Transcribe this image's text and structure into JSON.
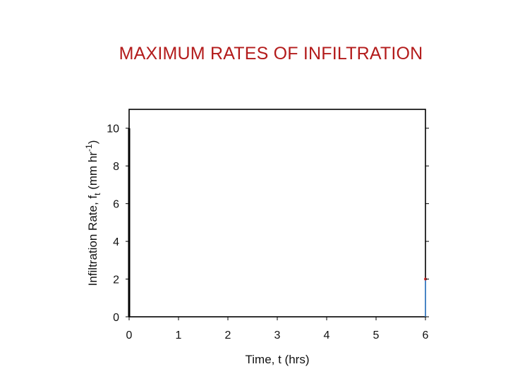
{
  "slide": {
    "title": "MAXIMUM RATES OF INFILTRATION"
  },
  "chart_data": {
    "type": "line",
    "xlabel": "Time, t (hrs)",
    "ylabel": {
      "main": "Infiltration Rate, f",
      "subscript": "t",
      "units_open": " (mm hr",
      "superscript": "-1",
      "units_close": ")"
    },
    "xlim": [
      0,
      6
    ],
    "ylim": [
      0,
      11
    ],
    "x_ticks": [
      0,
      1,
      2,
      3,
      4,
      5,
      6
    ],
    "y_ticks": [
      0,
      2,
      4,
      6,
      8,
      10
    ],
    "grid": false,
    "series": [
      {
        "color": "#000000",
        "x": [
          0,
          0
        ],
        "y": [
          0,
          10
        ]
      },
      {
        "color": "#4a86c5",
        "x": [
          6,
          6
        ],
        "y": [
          0,
          2
        ]
      }
    ],
    "markers": [
      {
        "x": 6,
        "y": 2,
        "color": "#cc2a2a"
      }
    ]
  }
}
